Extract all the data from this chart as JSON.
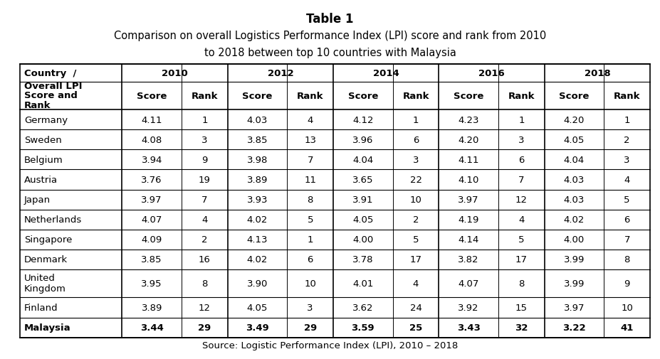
{
  "title_line1": "Table 1",
  "title_line2": "Comparison on overall Logistics Performance Index (LPI) score and rank from 2010",
  "title_line3": "to 2018 between top 10 countries with Malaysia",
  "source": "Source: Logistic Performance Index (LPI), 2010 – 2018",
  "col_headers_years": [
    "2010",
    "2012",
    "2014",
    "2016",
    "2018"
  ],
  "col_headers_sub": [
    "Score",
    "Rank",
    "Score",
    "Rank",
    "Score",
    "Rank",
    "Score",
    "Rank",
    "Score",
    "Rank"
  ],
  "header_col1_lines": [
    "Country  /",
    "Overall LPI",
    "Score and",
    "Rank"
  ],
  "countries": [
    "Germany",
    "Sweden",
    "Belgium",
    "Austria",
    "Japan",
    "Netherlands",
    "Singapore",
    "Denmark",
    "United\nKingdom",
    "Finland",
    "Malaysia"
  ],
  "data": [
    [
      "4.11",
      "1",
      "4.03",
      "4",
      "4.12",
      "1",
      "4.23",
      "1",
      "4.20",
      "1"
    ],
    [
      "4.08",
      "3",
      "3.85",
      "13",
      "3.96",
      "6",
      "4.20",
      "3",
      "4.05",
      "2"
    ],
    [
      "3.94",
      "9",
      "3.98",
      "7",
      "4.04",
      "3",
      "4.11",
      "6",
      "4.04",
      "3"
    ],
    [
      "3.76",
      "19",
      "3.89",
      "11",
      "3.65",
      "22",
      "4.10",
      "7",
      "4.03",
      "4"
    ],
    [
      "3.97",
      "7",
      "3.93",
      "8",
      "3.91",
      "10",
      "3.97",
      "12",
      "4.03",
      "5"
    ],
    [
      "4.07",
      "4",
      "4.02",
      "5",
      "4.05",
      "2",
      "4.19",
      "4",
      "4.02",
      "6"
    ],
    [
      "4.09",
      "2",
      "4.13",
      "1",
      "4.00",
      "5",
      "4.14",
      "5",
      "4.00",
      "7"
    ],
    [
      "3.85",
      "16",
      "4.02",
      "6",
      "3.78",
      "17",
      "3.82",
      "17",
      "3.99",
      "8"
    ],
    [
      "3.95",
      "8",
      "3.90",
      "10",
      "4.01",
      "4",
      "4.07",
      "8",
      "3.99",
      "9"
    ],
    [
      "3.89",
      "12",
      "4.05",
      "3",
      "3.62",
      "24",
      "3.92",
      "15",
      "3.97",
      "10"
    ],
    [
      "3.44",
      "29",
      "3.49",
      "29",
      "3.59",
      "25",
      "3.43",
      "32",
      "3.22",
      "41"
    ]
  ],
  "bg_color": "#ffffff",
  "figsize": [
    9.27,
    5.06
  ],
  "dpi": 100
}
